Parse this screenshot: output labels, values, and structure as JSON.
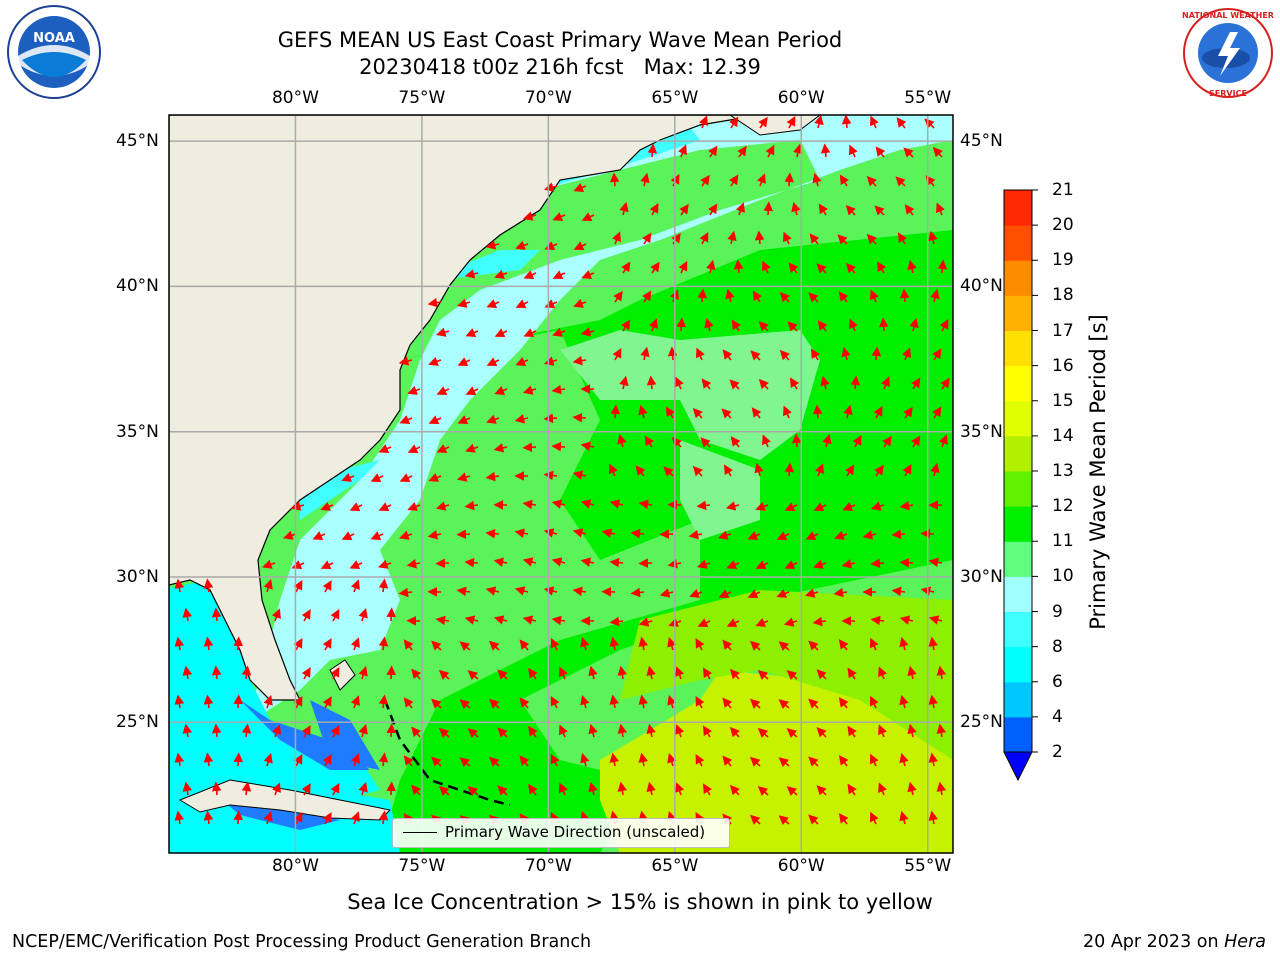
{
  "title": {
    "line1": "GEFS MEAN US East Coast Primary Wave Mean Period",
    "line2": "20230418 t00z 216h fcst   Max: 12.39"
  },
  "map": {
    "lon_range": [
      -85,
      -54
    ],
    "lat_range": [
      20.5,
      45.9
    ],
    "lon_ticks": [
      {
        "value": -80,
        "label": "80°W"
      },
      {
        "value": -75,
        "label": "75°W"
      },
      {
        "value": -70,
        "label": "70°W"
      },
      {
        "value": -65,
        "label": "65°W"
      },
      {
        "value": -60,
        "label": "60°W"
      },
      {
        "value": -55,
        "label": "55°W"
      }
    ],
    "lat_ticks": [
      {
        "value": 45,
        "label": "45°N"
      },
      {
        "value": 40,
        "label": "40°N"
      },
      {
        "value": 35,
        "label": "35°N"
      },
      {
        "value": 30,
        "label": "30°N"
      },
      {
        "value": 25,
        "label": "25°N"
      }
    ],
    "grid": true,
    "colors": {
      "land": "#efeddf",
      "ocean_base": "#5af35a",
      "arrow": "#ff0000",
      "grid": "#aaaaaa"
    }
  },
  "legend": {
    "label": "Primary Wave Direction (unscaled)",
    "placement": "lower center"
  },
  "colorbar": {
    "title": "Primary Wave Mean Period [s]",
    "ticks": [
      "21",
      "20",
      "19",
      "18",
      "17",
      "16",
      "15",
      "14",
      "13",
      "12",
      "11",
      "10",
      "9",
      "8",
      "6",
      "4",
      "2"
    ],
    "levels": [
      2,
      4,
      6,
      8,
      9,
      10,
      11,
      12,
      13,
      14,
      15,
      16,
      17,
      18,
      19,
      20,
      21
    ],
    "colors": [
      "#0060ff",
      "#00c8ff",
      "#00ffff",
      "#40ffff",
      "#a0ffff",
      "#60ff80",
      "#00ee00",
      "#60f000",
      "#b0f000",
      "#e0ff00",
      "#ffff00",
      "#ffe000",
      "#ffb000",
      "#ff8c00",
      "#ff5000",
      "#ff2800",
      "#ff0000"
    ],
    "extend_color": "#0000ff"
  },
  "footer": {
    "note": "Sea Ice Concentration > 15% is shown in pink to yellow",
    "credit": "NCEP/EMC/Verification Post Processing Product Generation Branch",
    "date_prefix": "20 Apr 2023 on ",
    "date_host": "Hera"
  },
  "logos": {
    "left": "noaa-logo",
    "right": "nws-logo",
    "left_text": "NOAA",
    "right_text": "NATIONAL WEATHER SERVICE"
  }
}
